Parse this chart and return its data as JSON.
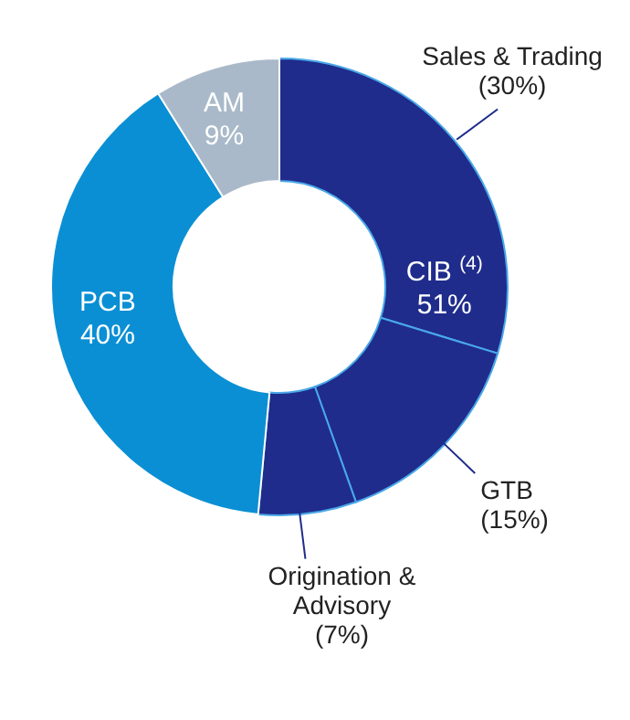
{
  "chart_data": {
    "type": "donut",
    "categories": [
      "Sales & Trading",
      "GTB",
      "Origination & Advisory",
      "PCB",
      "AM"
    ],
    "values": [
      30,
      15,
      7,
      40,
      9
    ],
    "colors": [
      "#1f2c8c",
      "#1f2c8c",
      "#1f2c8c",
      "#0b8fd4",
      "#a9b9c9"
    ],
    "value_labels": [
      "(30%)",
      "(15%)",
      "(7%)",
      "40%",
      "9%"
    ],
    "annotations": [
      "CIB $^{(4)}$",
      "51%"
    ]
  }
}
